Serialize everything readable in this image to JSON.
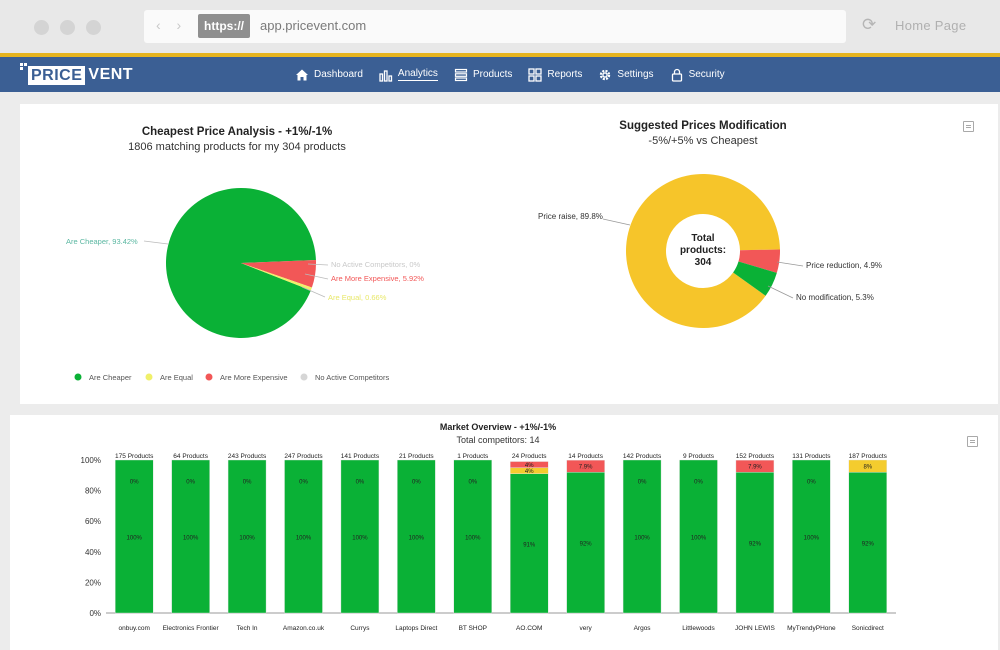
{
  "browser": {
    "https_label": "https://",
    "url": "app.pricevent.com",
    "home_label": "Home Page"
  },
  "app": {
    "logo_box": "PRICE",
    "logo_rest": "VENT",
    "menu": [
      {
        "label": "Dashboard",
        "icon": "home-icon"
      },
      {
        "label": "Analytics",
        "icon": "bar-chart-icon",
        "active": true
      },
      {
        "label": "Products",
        "icon": "list-icon"
      },
      {
        "label": "Reports",
        "icon": "grid-icon"
      },
      {
        "label": "Settings",
        "icon": "gear-icon"
      },
      {
        "label": "Security",
        "icon": "lock-icon"
      }
    ]
  },
  "colors": {
    "green": "#0ab136",
    "red": "#f25757",
    "yellow": "#f4cc2e",
    "nav": "#3b5f94",
    "gold": "#e6b41f"
  },
  "chart_data": [
    {
      "type": "pie",
      "title": "Cheapest Price Analysis - +1%/-1%",
      "subtitle": "1806 matching products for my 304 products",
      "slices": [
        {
          "name": "Are Cheaper",
          "label": "Are Cheaper, 93.42%",
          "value": 93.42,
          "color": "#0ab136"
        },
        {
          "name": "No Active Competitors",
          "label": "No Active Competitors, 0%",
          "value": 0,
          "color": "#d6d6d6"
        },
        {
          "name": "Are More Expensive",
          "label": "Are More Expensive, 5.92%",
          "value": 5.92,
          "color": "#f25757"
        },
        {
          "name": "Are Equal",
          "label": "Are Equal, 0.66%",
          "value": 0.66,
          "color": "#f0f06a"
        }
      ],
      "legend": [
        {
          "name": "Are Cheaper",
          "color": "#0ab136"
        },
        {
          "name": "Are Equal",
          "color": "#f0f06a"
        },
        {
          "name": "Are More Expensive",
          "color": "#f25757"
        },
        {
          "name": "No Active Competitors",
          "color": "#d6d6d6"
        }
      ],
      "legend_position": "bottom"
    },
    {
      "type": "pie",
      "title": "Suggested Prices Modification",
      "subtitle": "-5%/+5% vs Cheapest",
      "center_line1": "Total",
      "center_line2": "products:",
      "center_line3": "304",
      "slices": [
        {
          "name": "Price raise",
          "label": "Price raise, 89.8%",
          "value": 89.8,
          "color": "#f6c52a"
        },
        {
          "name": "Price reduction",
          "label": "Price reduction, 4.9%",
          "value": 4.9,
          "color": "#f25757"
        },
        {
          "name": "No modification",
          "label": "No modification, 5.3%",
          "value": 5.3,
          "color": "#0ab136"
        }
      ]
    },
    {
      "type": "bar",
      "stacked": true,
      "title": "Market Overview - +1%/-1%",
      "subtitle": "Total competitors: 14",
      "categories": [
        "onbuy.com",
        "Electronics Frontier",
        "Tech In",
        "Amazon.co.uk",
        "Currys",
        "Laptops Direct",
        "BT SHOP",
        "AO.COM",
        "very",
        "Argos",
        "Littlewoods",
        "JOHN LEWIS",
        "MyTrendyPHone",
        "Sonicdirect"
      ],
      "top_labels": [
        "175 Products",
        "64 Products",
        "243 Products",
        "247 Products",
        "141 Products",
        "21 Products",
        "1 Products",
        "24 Products",
        "14 Products",
        "142 Products",
        "9 Products",
        "152 Products",
        "131 Products",
        "187 Products"
      ],
      "series": [
        {
          "name": "green",
          "color": "#0ab136",
          "values": [
            100,
            100,
            100,
            100,
            100,
            100,
            100,
            91,
            92,
            100,
            100,
            92,
            100,
            92
          ],
          "labels": [
            "100%",
            "100%",
            "100%",
            "100%",
            "100%",
            "100%",
            "100%",
            "91%",
            "92%",
            "100%",
            "100%",
            "92%",
            "100%",
            "92%"
          ]
        },
        {
          "name": "yellow",
          "color": "#f4cc2e",
          "values": [
            0,
            0,
            0,
            0,
            0,
            0,
            0,
            4,
            0,
            0,
            0,
            0,
            0,
            8
          ],
          "labels": [
            "0%",
            "0%",
            "0%",
            "0%",
            "0%",
            "0%",
            "0%",
            "4%",
            "",
            "0%",
            "0%",
            "",
            "0%",
            "8%"
          ]
        },
        {
          "name": "red",
          "color": "#f25757",
          "values": [
            0,
            0,
            0,
            0,
            0,
            0,
            0,
            4,
            7.9,
            0,
            0,
            7.9,
            0,
            0
          ],
          "labels": [
            "",
            "",
            "",
            "",
            "",
            "",
            "",
            "4%",
            "7.9%",
            "",
            "",
            "7.9%",
            "",
            ""
          ]
        }
      ],
      "ylim": [
        0,
        100
      ],
      "yticks": [
        "0%",
        "20%",
        "40%",
        "60%",
        "80%",
        "100%"
      ]
    }
  ]
}
